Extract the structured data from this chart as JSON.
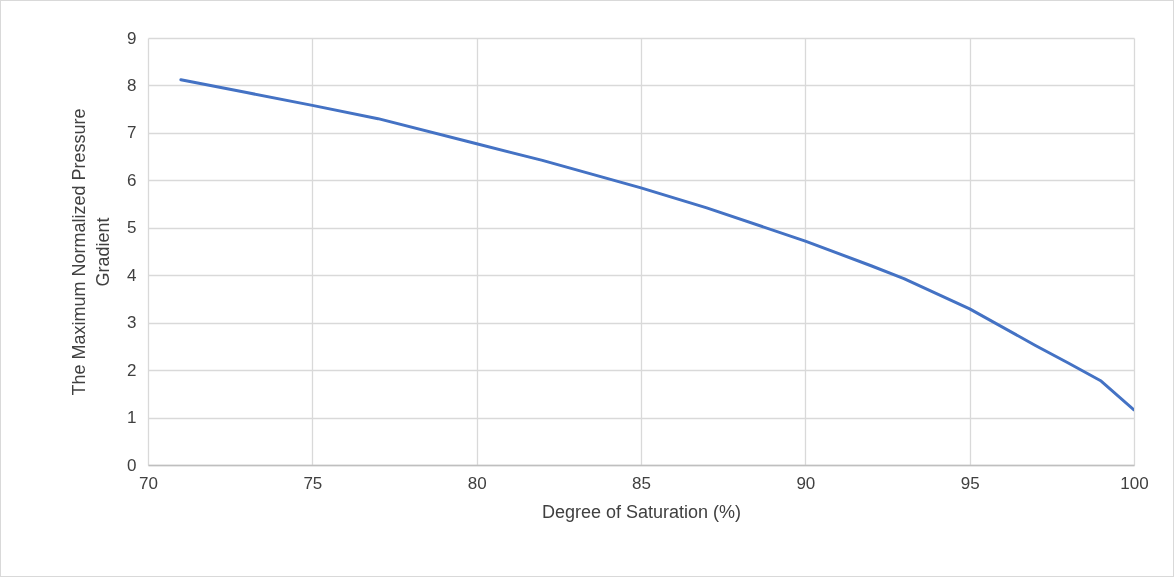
{
  "chart_data": {
    "type": "line",
    "xlabel": "Degree of Saturation (%)",
    "ylabel": "The Maximum Normalized Pressure Gradient",
    "xlim": [
      70,
      100
    ],
    "xticks": [
      70,
      75,
      80,
      85,
      90,
      95,
      100
    ],
    "ylim": [
      0,
      9
    ],
    "yticks": [
      0,
      1,
      2,
      3,
      4,
      5,
      6,
      7,
      8,
      9
    ],
    "grid": true,
    "marker": "none",
    "line_style": "solid",
    "series": [
      {
        "color": "#4472c4",
        "x": [
          71,
          73,
          75,
          77,
          80,
          82,
          85,
          87,
          90,
          92,
          93,
          95,
          97,
          98,
          99,
          100
        ],
        "values": [
          8.12,
          7.85,
          7.58,
          7.3,
          6.77,
          6.42,
          5.84,
          5.42,
          4.72,
          4.2,
          3.93,
          3.29,
          2.52,
          2.15,
          1.77,
          1.16
        ]
      }
    ]
  }
}
